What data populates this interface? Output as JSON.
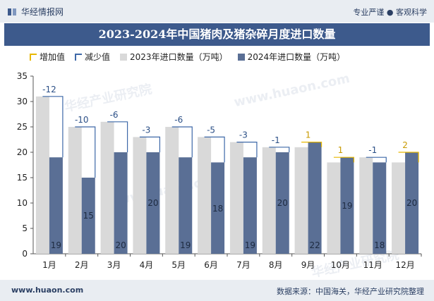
{
  "header": {
    "brand": "华经情报网",
    "slogan": "专业严谨 ● 客观科学"
  },
  "title": "2023-2024年中国猪肉及猪杂碎月度进口数量",
  "footer": {
    "url": "www.huaon.com",
    "source": "数据来源：中国海关，华经产业研究院整理"
  },
  "watermarks": [
    "华经产业研究院",
    "www.huaon.com",
    "华经产业研究院",
    "www.huaon.com"
  ],
  "legend": [
    {
      "key": "inc",
      "label": "增加值"
    },
    {
      "key": "dec",
      "label": "减少值"
    },
    {
      "key": "s23",
      "label": "2023年进口数量（万吨）"
    },
    {
      "key": "s24",
      "label": "2024年进口数量（万吨）"
    }
  ],
  "chart_data": {
    "type": "bar",
    "categories": [
      "1月",
      "2月",
      "3月",
      "4月",
      "5月",
      "6月",
      "7月",
      "8月",
      "9月",
      "10月",
      "11月",
      "12月"
    ],
    "series": [
      {
        "name": "2023年进口数量（万吨）",
        "values": [
          31,
          25,
          26,
          23,
          25,
          23,
          22,
          21,
          21,
          18,
          19,
          18
        ],
        "color": "#d9d9d9"
      },
      {
        "name": "2024年进口数量（万吨）",
        "values": [
          19,
          15,
          20,
          20,
          19,
          18,
          19,
          20,
          22,
          19,
          18,
          20
        ],
        "color": "#5a6f95"
      }
    ],
    "differences": [
      -12,
      -10,
      -6,
      -3,
      -6,
      -5,
      -3,
      -1,
      1,
      1,
      -1,
      2
    ],
    "increase_color": "#e8b800",
    "decrease_color": "#3d68a8",
    "ylim": [
      0,
      35
    ],
    "yticks": [
      0,
      5,
      10,
      15,
      20,
      25,
      30,
      35
    ]
  }
}
